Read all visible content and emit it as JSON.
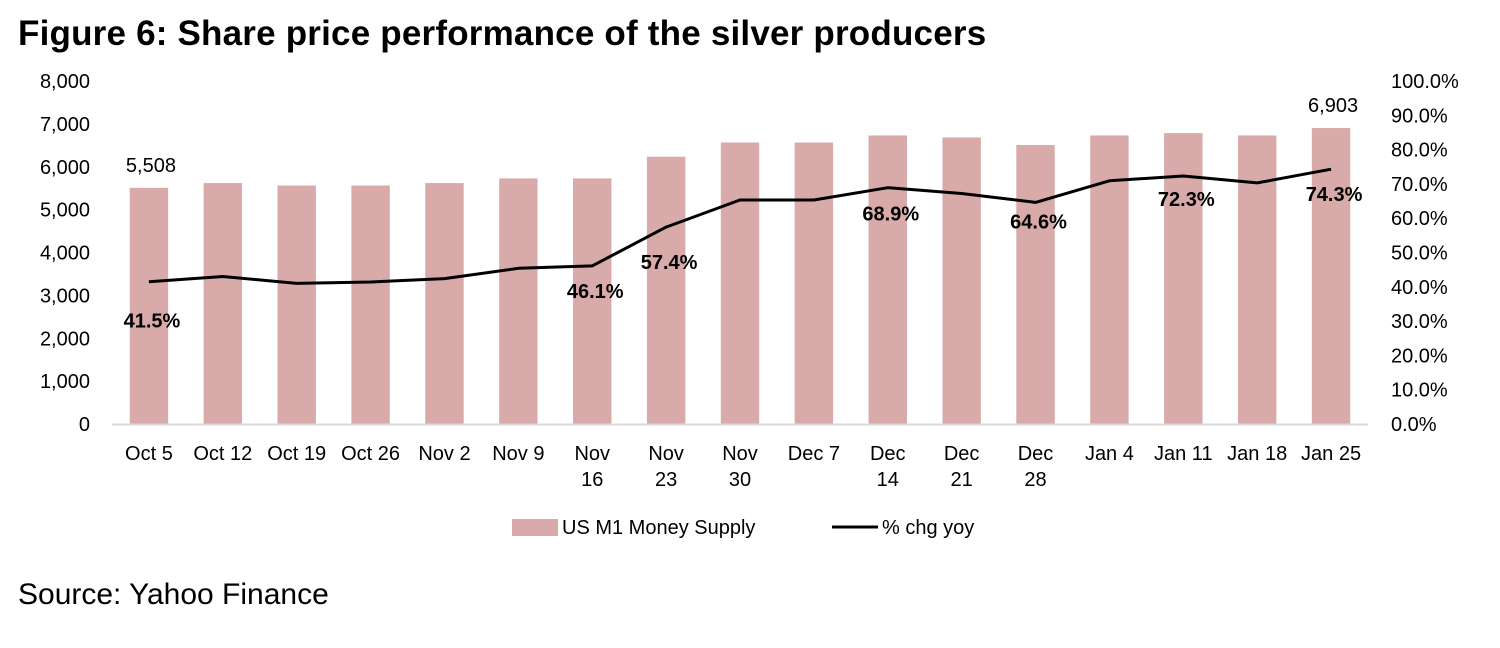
{
  "title": "Figure 6: Share price performance of the silver producers",
  "source": "Source: Yahoo Finance",
  "colors": {
    "bar": "#d8aaaa",
    "line": "#000000",
    "axis": "#d9d9d9"
  },
  "chart_data": {
    "type": "bar",
    "title": "Figure 6: Share price performance of the silver producers",
    "xlabel": "",
    "ylabel": "",
    "y2label": "",
    "categories": [
      [
        "Oct 5"
      ],
      [
        "Oct 12"
      ],
      [
        "Oct 19"
      ],
      [
        "Oct 26"
      ],
      [
        "Nov 2"
      ],
      [
        "Nov 9"
      ],
      [
        "Nov",
        "16"
      ],
      [
        "Nov",
        "23"
      ],
      [
        "Nov",
        "30"
      ],
      [
        "Dec 7"
      ],
      [
        "Dec",
        "14"
      ],
      [
        "Dec",
        "21"
      ],
      [
        "Dec",
        "28"
      ],
      [
        "Jan 4"
      ],
      [
        "Jan 11"
      ],
      [
        "Jan 18"
      ],
      [
        "Jan 25"
      ]
    ],
    "ylim": [
      0,
      8000
    ],
    "y_ticks": [
      "0",
      "1,000",
      "2,000",
      "3,000",
      "4,000",
      "5,000",
      "6,000",
      "7,000",
      "8,000"
    ],
    "y2lim": [
      0,
      100
    ],
    "y2_ticks": [
      "0.0%",
      "10.0%",
      "20.0%",
      "30.0%",
      "40.0%",
      "50.0%",
      "60.0%",
      "70.0%",
      "80.0%",
      "90.0%",
      "100.0%"
    ],
    "grid": false,
    "legend_position": "bottom",
    "series": [
      {
        "name": "US M1 Money Supply",
        "type": "bar",
        "axis": "left",
        "values": [
          5508,
          5619,
          5562,
          5562,
          5619,
          5728,
          5728,
          6234,
          6565,
          6565,
          6730,
          6683,
          6508,
          6730,
          6785,
          6730,
          6903
        ],
        "labels": {
          "0": "5,508",
          "16": "6,903"
        }
      },
      {
        "name": "% chg yoy",
        "type": "line",
        "axis": "right",
        "values": [
          41.5,
          43.0,
          41.0,
          41.4,
          42.4,
          45.4,
          46.1,
          57.4,
          65.3,
          65.3,
          68.9,
          67.2,
          64.6,
          70.9,
          72.3,
          70.3,
          74.3
        ],
        "labels": {
          "0": "41.5%",
          "6": "46.1%",
          "7": "57.4%",
          "10": "68.9%",
          "12": "64.6%",
          "14": "72.3%",
          "16": "74.3%"
        }
      }
    ]
  }
}
